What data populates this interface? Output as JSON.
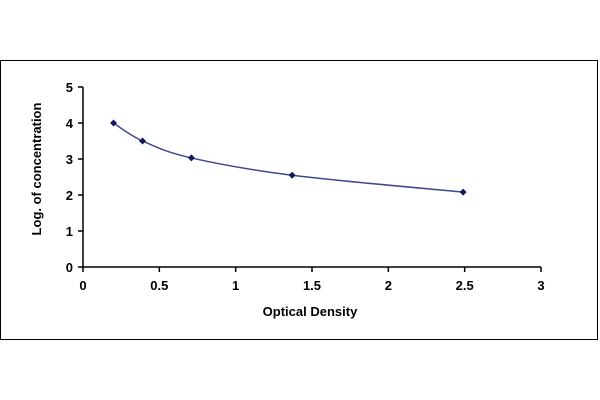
{
  "chart_data": {
    "type": "line",
    "xlabel": "Optical Density",
    "ylabel": "Log. of concentration",
    "xlim": [
      0,
      3
    ],
    "ylim": [
      0,
      5
    ],
    "x_ticks": [
      "0",
      "0.5",
      "1",
      "1.5",
      "2",
      "2.5",
      "3"
    ],
    "y_ticks": [
      "0",
      "1",
      "2",
      "3",
      "4",
      "5"
    ],
    "grid": false,
    "series": [
      {
        "points": [
          {
            "x": 0.2,
            "y": 4.0
          },
          {
            "x": 0.39,
            "y": 3.5
          },
          {
            "x": 0.71,
            "y": 3.03
          },
          {
            "x": 1.37,
            "y": 2.55
          },
          {
            "x": 2.49,
            "y": 2.08
          }
        ],
        "curve": "smooth",
        "line_color": "#3c4a8c",
        "marker_color": "#101a5a"
      }
    ]
  }
}
